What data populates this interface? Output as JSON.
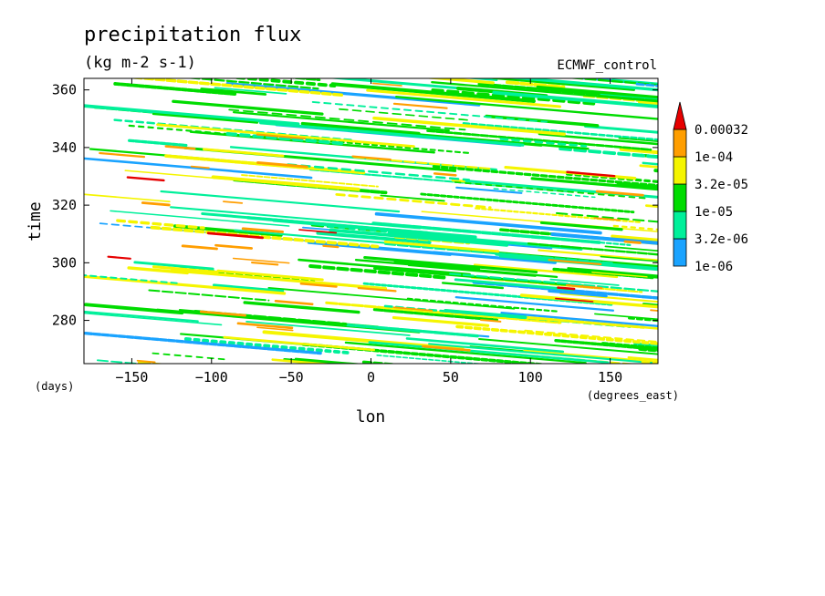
{
  "chart_data": {
    "type": "heatmap",
    "title": "precipitation flux",
    "subtitle": "(kg m-2 s-1)",
    "annotation": "ECMWF_control",
    "xlabel": "lon",
    "ylabel": "time",
    "x_units": "(degrees_east)",
    "y_units": "(days)",
    "xlim": [
      -180,
      180
    ],
    "ylim": [
      265,
      364
    ],
    "x_ticks": [
      -150,
      -100,
      -50,
      0,
      50,
      100,
      150
    ],
    "x_tick_labels": [
      "−150",
      "−100",
      "−50",
      "0",
      "50",
      "100",
      "150"
    ],
    "y_ticks": [
      280,
      300,
      320,
      340,
      360
    ],
    "y_tick_labels": [
      "280",
      "300",
      "320",
      "340",
      "360"
    ],
    "colorbar": {
      "levels": [
        "1e-06",
        "3.2e-06",
        "1e-05",
        "3.2e-05",
        "1e-04",
        "0.00032"
      ],
      "colors": [
        "#1aa3ff",
        "#00f09a",
        "#00dc00",
        "#f5f500",
        "#ff9e00",
        "#e60000"
      ]
    },
    "description_pattern": "diagonal streaks sloping down to the right"
  }
}
